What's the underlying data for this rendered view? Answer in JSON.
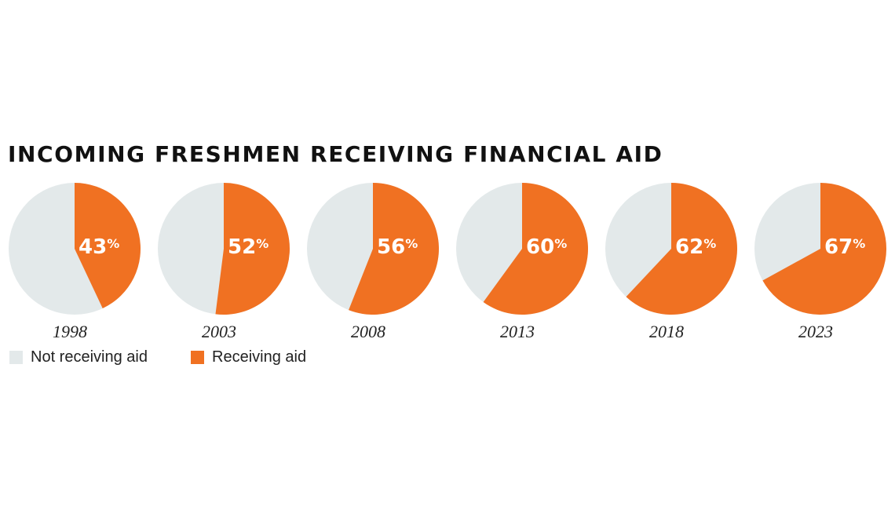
{
  "chart_data": {
    "type": "pie",
    "title": "INCOMING FRESHMEN RECEIVING FINANCIAL AID",
    "categories": [
      "1998",
      "2003",
      "2008",
      "2013",
      "2018",
      "2023"
    ],
    "series": [
      {
        "name": "Receiving aid",
        "values": [
          43,
          52,
          56,
          60,
          62,
          67
        ],
        "color": "#f07122"
      },
      {
        "name": "Not receiving aid",
        "values": [
          57,
          48,
          44,
          40,
          38,
          33
        ],
        "color": "#e3e9ea"
      }
    ],
    "data_labels": [
      "43%",
      "52%",
      "56%",
      "60%",
      "62%",
      "67%"
    ],
    "legend": {
      "placement": "bottom-left",
      "entries": [
        "Not receiving aid",
        "Receiving aid"
      ]
    }
  }
}
